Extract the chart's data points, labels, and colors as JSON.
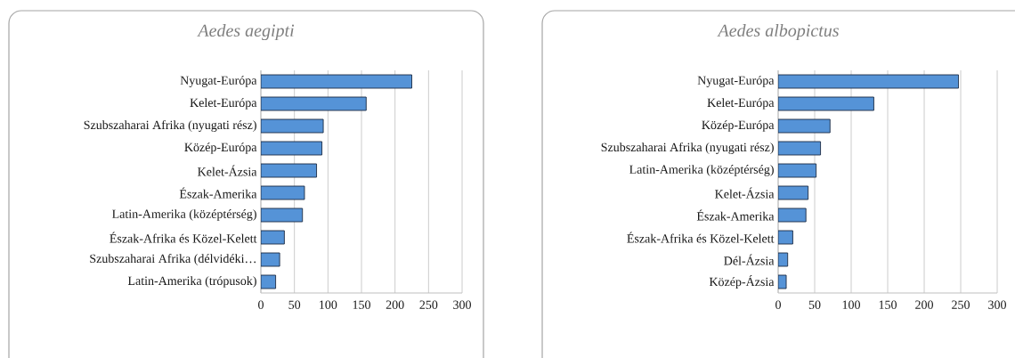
{
  "chart_data": [
    {
      "type": "bar",
      "orientation": "horizontal",
      "title": "Aedes aegipti",
      "categories": [
        "Nyugat-Európa",
        "Kelet-Európa",
        "Szubszaharai Afrika (nyugati rész)",
        "Közép-Európa",
        "Kelet-Ázsia",
        "Észak-Amerika",
        "Latin-Amerika (középtérség)",
        "Észak-Afrika és Közel-Kelett",
        "Szubszaharai Afrika (délvidéki…",
        "Latin-Amerika (trópusok)"
      ],
      "values": [
        225,
        157,
        93,
        91,
        83,
        65,
        62,
        35,
        28,
        22
      ],
      "color": "#5593d7",
      "xlim": [
        0,
        300
      ],
      "xticks": [
        0,
        50,
        100,
        150,
        200,
        250,
        300
      ],
      "grid": "x"
    },
    {
      "type": "bar",
      "orientation": "horizontal",
      "title": "Aedes albopictus",
      "categories": [
        "Nyugat-Európa",
        "Kelet-Európa",
        "Közép-Európa",
        "Szubszaharai Afrika (nyugati rész)",
        "Latin-Amerika (középtérség)",
        "Kelet-Ázsia",
        "Észak-Amerika",
        "Észak-Afrika és Közel-Kelett",
        "Dél-Ázsia",
        "Közép-Ázsia"
      ],
      "values": [
        247,
        131,
        71,
        58,
        52,
        41,
        38,
        20,
        13,
        11
      ],
      "color": "#5593d7",
      "xlim": [
        0,
        300
      ],
      "xticks": [
        0,
        50,
        100,
        150,
        200,
        250,
        300
      ],
      "grid": "x"
    }
  ]
}
